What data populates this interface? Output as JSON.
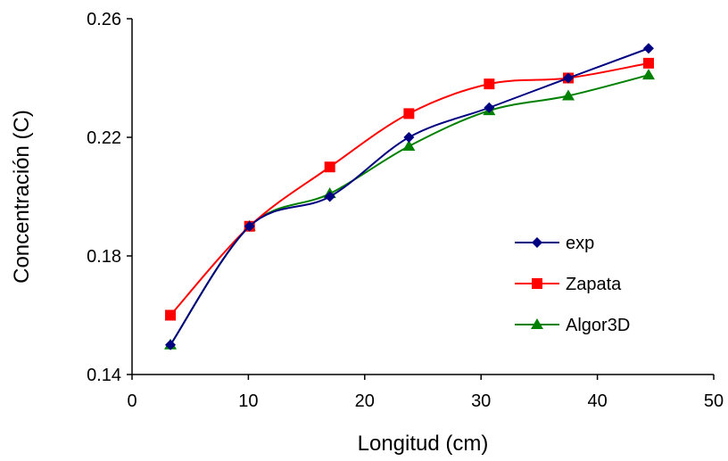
{
  "chart_data": {
    "type": "line",
    "xlabel": "Longitud (cm)",
    "ylabel": "Concentración (C)",
    "xlim": [
      0,
      50
    ],
    "ylim": [
      0.14,
      0.26
    ],
    "x_ticks": [
      "0",
      "10",
      "20",
      "30",
      "40",
      "50"
    ],
    "y_ticks": [
      "0.14",
      "0.18",
      "0.22",
      "0.26"
    ],
    "grid": false,
    "legend_position": "right",
    "smooth": true,
    "series": [
      {
        "name": "exp",
        "color": "#000080",
        "marker": "diamond",
        "x": [
          3.3,
          10.1,
          17,
          23.8,
          30.7,
          37.5,
          44.4
        ],
        "y": [
          0.15,
          0.19,
          0.2,
          0.22,
          0.23,
          0.24,
          0.25
        ]
      },
      {
        "name": "Zapata",
        "color": "#ff0000",
        "marker": "square",
        "x": [
          3.3,
          10.1,
          17,
          23.8,
          30.7,
          37.5,
          44.4
        ],
        "y": [
          0.16,
          0.19,
          0.21,
          0.228,
          0.238,
          0.24,
          0.245
        ]
      },
      {
        "name": "Algor3D",
        "color": "#008000",
        "marker": "triangle",
        "x": [
          3.3,
          10.1,
          17,
          23.8,
          30.7,
          37.5,
          44.4
        ],
        "y": [
          0.15,
          0.19,
          0.201,
          0.217,
          0.229,
          0.234,
          0.241
        ]
      }
    ]
  }
}
